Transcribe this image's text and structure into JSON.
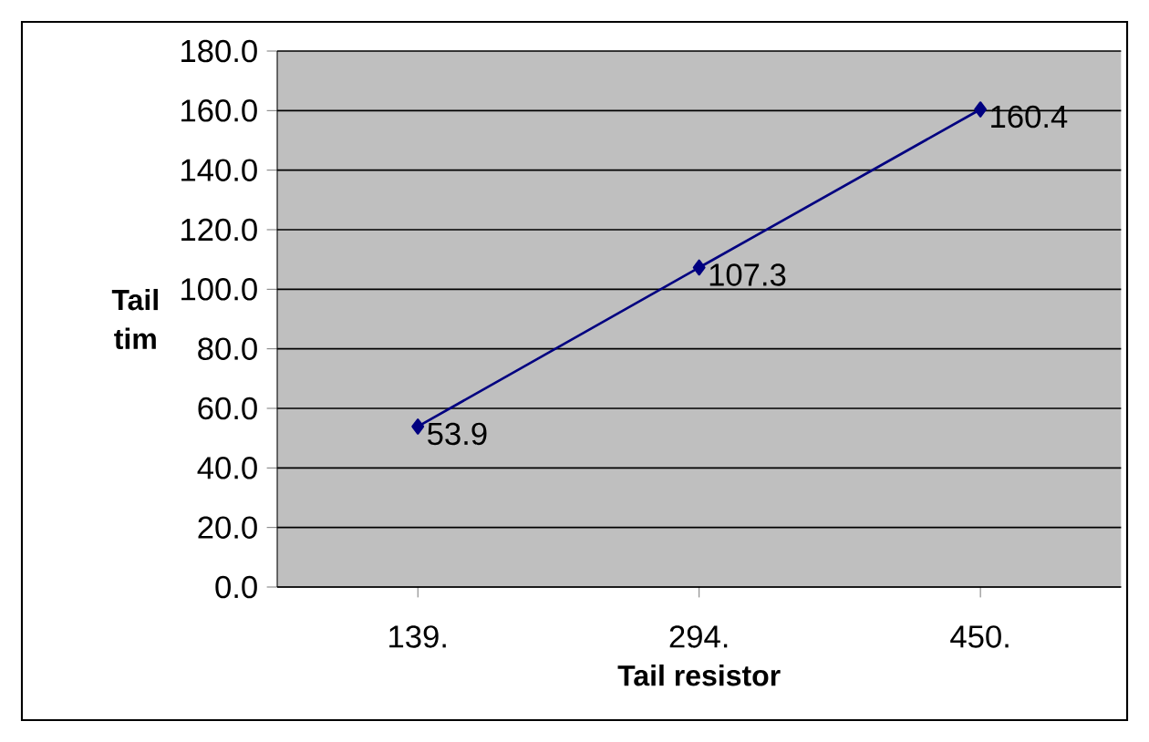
{
  "chart_data": {
    "type": "line",
    "xlabel": "Tail resistor",
    "ylabel": "Tail tim",
    "categories": [
      "139.",
      "294.",
      "450."
    ],
    "series": [
      {
        "color": "#000080",
        "values": [
          53.9,
          107.3,
          160.4
        ]
      }
    ],
    "ylim": [
      0,
      180
    ],
    "yticks": [
      {
        "value": 0,
        "label": "0.0"
      },
      {
        "value": 20,
        "label": "20.0"
      },
      {
        "value": 40,
        "label": "40.0"
      },
      {
        "value": 60,
        "label": "60.0"
      },
      {
        "value": 80,
        "label": "80.0"
      },
      {
        "value": 100,
        "label": "100.0"
      },
      {
        "value": 120,
        "label": "120.0"
      },
      {
        "value": 140,
        "label": "140.0"
      },
      {
        "value": 160,
        "label": "160.0"
      },
      {
        "value": 180,
        "label": "180.0"
      }
    ],
    "grid": "y",
    "marker": "diamond",
    "data_labels": true
  }
}
